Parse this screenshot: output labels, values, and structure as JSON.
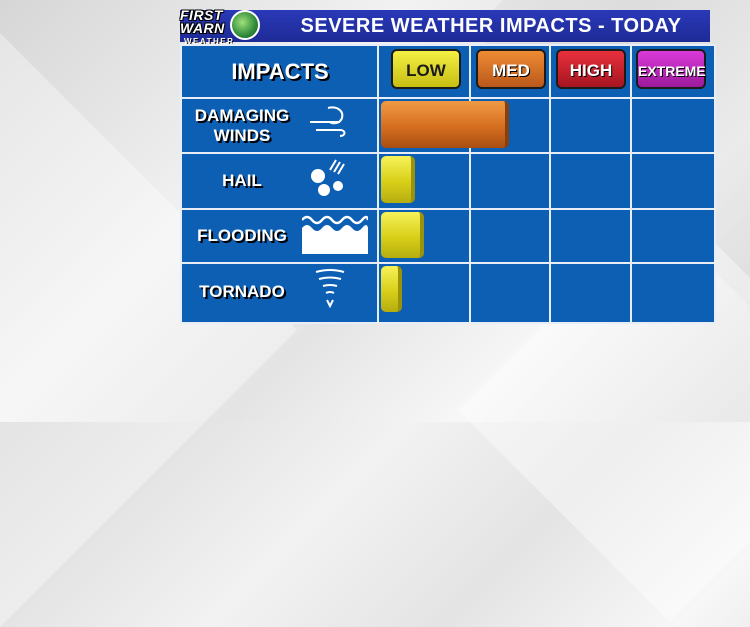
{
  "title": "SEVERE WEATHER IMPACTS - TODAY",
  "logo": {
    "line1": "FIRST",
    "line2": "WARN",
    "sub": "WEATHER",
    "icon": "network-peacock-icon"
  },
  "header_label": "IMPACTS",
  "chart_data": {
    "type": "bar",
    "orientation": "horizontal",
    "title": "SEVERE WEATHER IMPACTS - TODAY",
    "scale_levels": [
      "LOW",
      "MED",
      "HIGH",
      "EXTREME"
    ],
    "xlim": [
      0,
      4
    ],
    "categories": [
      "DAMAGING WINDS",
      "HAIL",
      "FLOODING",
      "TORNADO"
    ],
    "values": [
      1.5,
      0.4,
      0.5,
      0.25
    ],
    "bar_colors": [
      "#d66e1f",
      "#d8cf18",
      "#d8cf18",
      "#d8cf18"
    ],
    "grid": true,
    "legend": "none"
  },
  "rows": [
    {
      "label_lines": [
        "DAMAGING",
        "WINDS"
      ],
      "icon": "wind-icon"
    },
    {
      "label_lines": [
        "HAIL"
      ],
      "icon": "hail-icon"
    },
    {
      "label_lines": [
        "FLOODING"
      ],
      "icon": "flood-waves-icon"
    },
    {
      "label_lines": [
        "TORNADO"
      ],
      "icon": "tornado-icon"
    }
  ],
  "colors": {
    "panel": "#0d5fb4",
    "title_bar": "#2a39b8",
    "low": "#f4ef44",
    "med": "#ee8c34",
    "high": "#e8313d",
    "extreme": "#d93ad9"
  }
}
